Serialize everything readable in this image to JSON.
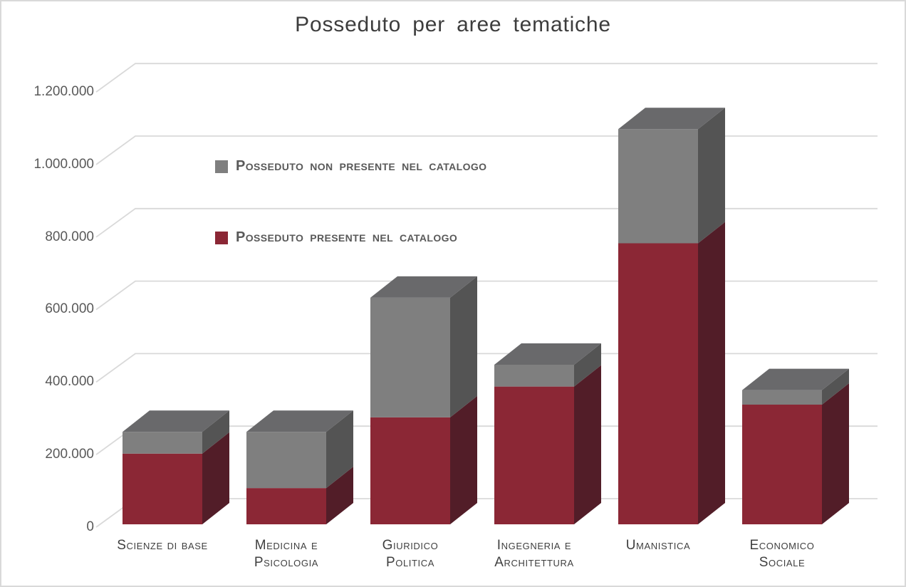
{
  "window": {
    "background": "#FFFFFF",
    "border_color": "#D9D9D9"
  },
  "title": "Posseduto per aree tematiche",
  "legend": {
    "items": [
      {
        "label": "Posseduto non presente nel catalogo",
        "color": "#7F7F7F"
      },
      {
        "label": "Posseduto presente nel catalogo",
        "color": "#8B2735"
      }
    ]
  },
  "chart_data": {
    "type": "bar",
    "variant": "3d-stacked-column",
    "title": "Posseduto per aree tematiche",
    "categories": [
      "Scienze di base",
      "Medicina e\nPsicologia",
      "Giuridico\nPolitica",
      "Ingegneria e\nArchitettura",
      "Umanistica",
      "Economico\nSociale"
    ],
    "series": [
      {
        "name": "Posseduto presente nel catalogo",
        "values": [
          195000,
          100000,
          295000,
          380000,
          775000,
          330000
        ],
        "front_color": "#8B2735",
        "side_color": "#521D28"
      },
      {
        "name": "Posseduto non presente nel catalogo",
        "values": [
          60000,
          155000,
          330000,
          60000,
          315000,
          40000
        ],
        "front_color": "#7F7F7F",
        "side_color": "#545454",
        "top_color": "#69696B"
      }
    ],
    "stack_order_bottom_to_top": [
      "Posseduto presente nel catalogo",
      "Posseduto non presente nel catalogo"
    ],
    "y_axis": {
      "min": 0,
      "max": 1200000,
      "tick_interval": 200000,
      "tick_labels": [
        "0",
        "200.000",
        "400.000",
        "600.000",
        "800.000",
        "1.000.000",
        "1.200.000"
      ]
    },
    "grid": true,
    "gridline_color": "#D9D9D9",
    "legend_position": "inside-upper-left",
    "text_colors": {
      "title": "#3D3D3D",
      "axis": "#595959",
      "category": "#3F3F3F",
      "legend": "#595959"
    }
  }
}
